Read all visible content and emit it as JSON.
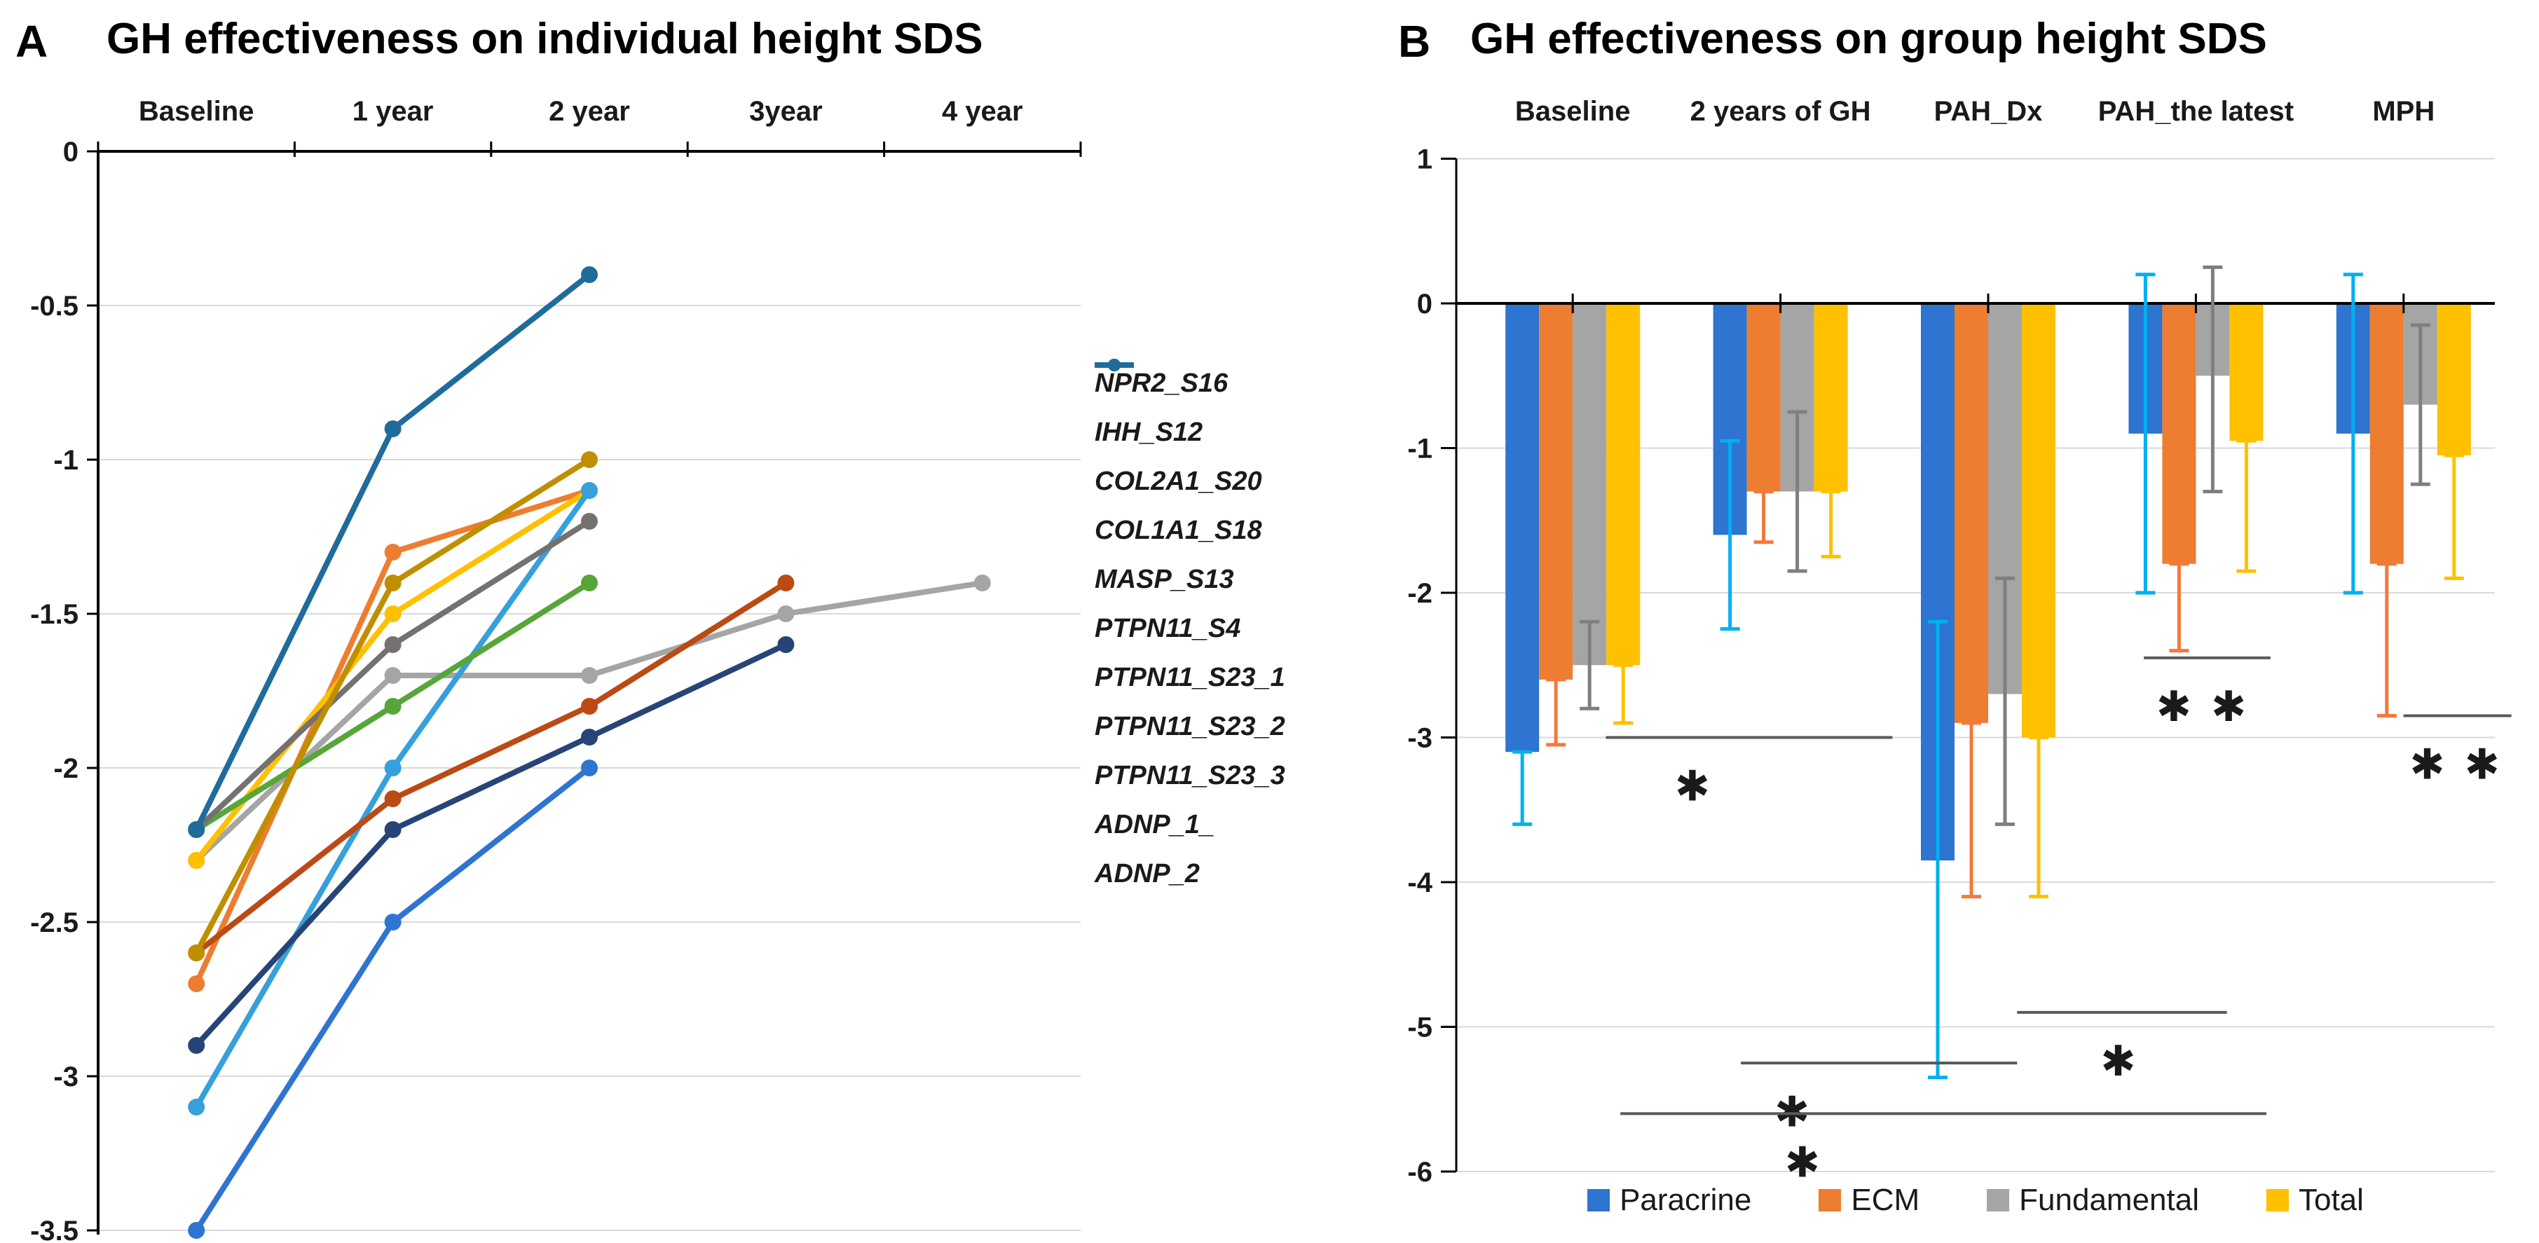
{
  "panelA": {
    "letter": "A",
    "title": "GH effectiveness on individual height SDS",
    "x_categories": [
      "Baseline",
      "1 year",
      "2 year",
      "3year",
      "4 year"
    ],
    "y_tick_labels": [
      "0",
      "-0.5",
      "-1",
      "-1.5",
      "-2",
      "-2.5",
      "-3",
      "-3.5"
    ]
  },
  "panelB": {
    "letter": "B",
    "title": "GH effectiveness on group height SDS",
    "y_tick_labels": [
      "1",
      "0",
      "-1",
      "-2",
      "-3",
      "-4",
      "-5",
      "-6"
    ]
  },
  "chart_data": [
    {
      "type": "line",
      "panel": "A",
      "title": "GH effectiveness on individual height SDS",
      "categories": [
        "Baseline",
        "1 year",
        "2 year",
        "3year",
        "4 year"
      ],
      "ylim": [
        0,
        -3.5
      ],
      "y_step": 0.5,
      "grid": true,
      "legend_position": "right",
      "series": [
        {
          "name": "NPR2_S16",
          "color": "#2E74D1",
          "values": [
            -3.5,
            -2.5,
            -2.0
          ]
        },
        {
          "name": "IHH_S12",
          "color": "#ED7D31",
          "values": [
            -2.7,
            -1.3,
            -1.1
          ]
        },
        {
          "name": "COL2A1_S20",
          "color": "#A5A5A5",
          "values": [
            -2.3,
            -1.7,
            -1.7,
            -1.5,
            -1.4
          ]
        },
        {
          "name": "COL1A1_S18",
          "color": "#FFC000",
          "values": [
            -2.3,
            -1.5,
            -1.1
          ]
        },
        {
          "name": "MASP_S13",
          "color": "#35A0DB",
          "values": [
            -3.1,
            -2.0,
            -1.1
          ]
        },
        {
          "name": "PTPN11_S4",
          "color": "#57A639",
          "values": [
            -2.2,
            -1.8,
            -1.4
          ]
        },
        {
          "name": "PTPN11_S23_1",
          "color": "#264478",
          "values": [
            -2.9,
            -2.2,
            -1.9,
            -1.6
          ]
        },
        {
          "name": "PTPN11_S23_2",
          "color": "#BB4A14",
          "values": [
            -2.6,
            -2.1,
            -1.8,
            -1.4
          ]
        },
        {
          "name": "PTPN11_S23_3",
          "color": "#767171",
          "values": [
            -2.2,
            -1.6,
            -1.2
          ]
        },
        {
          "name": "ADNP_1_",
          "color": "#BF8F00",
          "values": [
            -2.6,
            -1.4,
            -1.0
          ]
        },
        {
          "name": "ADNP_2",
          "color": "#1F6C9C",
          "values": [
            -2.2,
            -0.9,
            -0.4
          ]
        }
      ]
    },
    {
      "type": "bar",
      "panel": "B",
      "title": "GH effectiveness on group height SDS",
      "categories": [
        "Baseline",
        "2 years of GH",
        "PAH_Dx",
        "PAH_the latest",
        "MPH"
      ],
      "ylim": [
        1,
        -6
      ],
      "y_step": 1,
      "grid": true,
      "legend_position": "bottom",
      "series": [
        {
          "name": "Paracrine",
          "color": "#2E74D1",
          "error_color": "#00B0F0",
          "values": [
            -3.1,
            -1.6,
            -3.85,
            -0.9,
            -0.9
          ],
          "err_high": [
            -3.1,
            -0.95,
            -2.2,
            0.2,
            0.2
          ],
          "err_low": [
            -3.6,
            -2.25,
            -5.35,
            -2.0,
            -2.0
          ]
        },
        {
          "name": "ECM",
          "color": "#ED7D31",
          "error_color": "#F4793B",
          "values": [
            -2.6,
            -1.3,
            -2.9,
            -1.8,
            -1.8
          ],
          "err_high": [
            -2.6,
            -1.3,
            -2.9,
            -1.8,
            -1.8
          ],
          "err_low": [
            -3.05,
            -1.65,
            -4.1,
            -2.4,
            -2.85
          ]
        },
        {
          "name": "Fundamental",
          "color": "#A5A5A5",
          "error_color": "#7F7F7F",
          "values": [
            -2.5,
            -1.3,
            -2.7,
            -0.5,
            -0.7
          ],
          "err_high": [
            -2.2,
            -0.75,
            -1.9,
            0.25,
            -0.15
          ],
          "err_low": [
            -2.8,
            -1.85,
            -3.6,
            -1.3,
            -1.25
          ]
        },
        {
          "name": "Total",
          "color": "#FFC000",
          "error_color": "#FFC000",
          "values": [
            -2.5,
            -1.3,
            -3.0,
            -0.95,
            -1.05
          ],
          "err_high": [
            -2.5,
            -1.3,
            -3.0,
            -0.95,
            -1.05
          ],
          "err_low": [
            -2.9,
            -1.75,
            -4.1,
            -1.85,
            -1.9
          ]
        }
      ],
      "significance": [
        {
          "x1": 0.72,
          "x2": 2.1,
          "y": -3.0,
          "label": "*",
          "label_x": 1.15,
          "label_y": -3.33
        },
        {
          "x1": 3.31,
          "x2": 3.92,
          "y": -2.45,
          "label": "**",
          "label_x": 3.6,
          "label_y": -2.78
        },
        {
          "x1": 4.56,
          "x2": 5.08,
          "y": -2.85,
          "label": "**",
          "label_x": 4.82,
          "label_y": -3.18
        },
        {
          "x1": 2.7,
          "x2": 3.71,
          "y": -4.9,
          "label": "*",
          "label_x": 3.2,
          "label_y": -5.23
        },
        {
          "x1": 1.37,
          "x2": 2.7,
          "y": -5.25,
          "label": "*",
          "label_x": 1.63,
          "label_y": -5.58
        },
        {
          "x1": 0.79,
          "x2": 3.9,
          "y": -5.6,
          "label": "*",
          "label_x": 1.68,
          "label_y": -5.93
        }
      ]
    }
  ],
  "colors": {
    "grid": "#D9D9D9",
    "axis": "#000000",
    "sig_line": "#595959",
    "text": "#1a1a1a"
  }
}
